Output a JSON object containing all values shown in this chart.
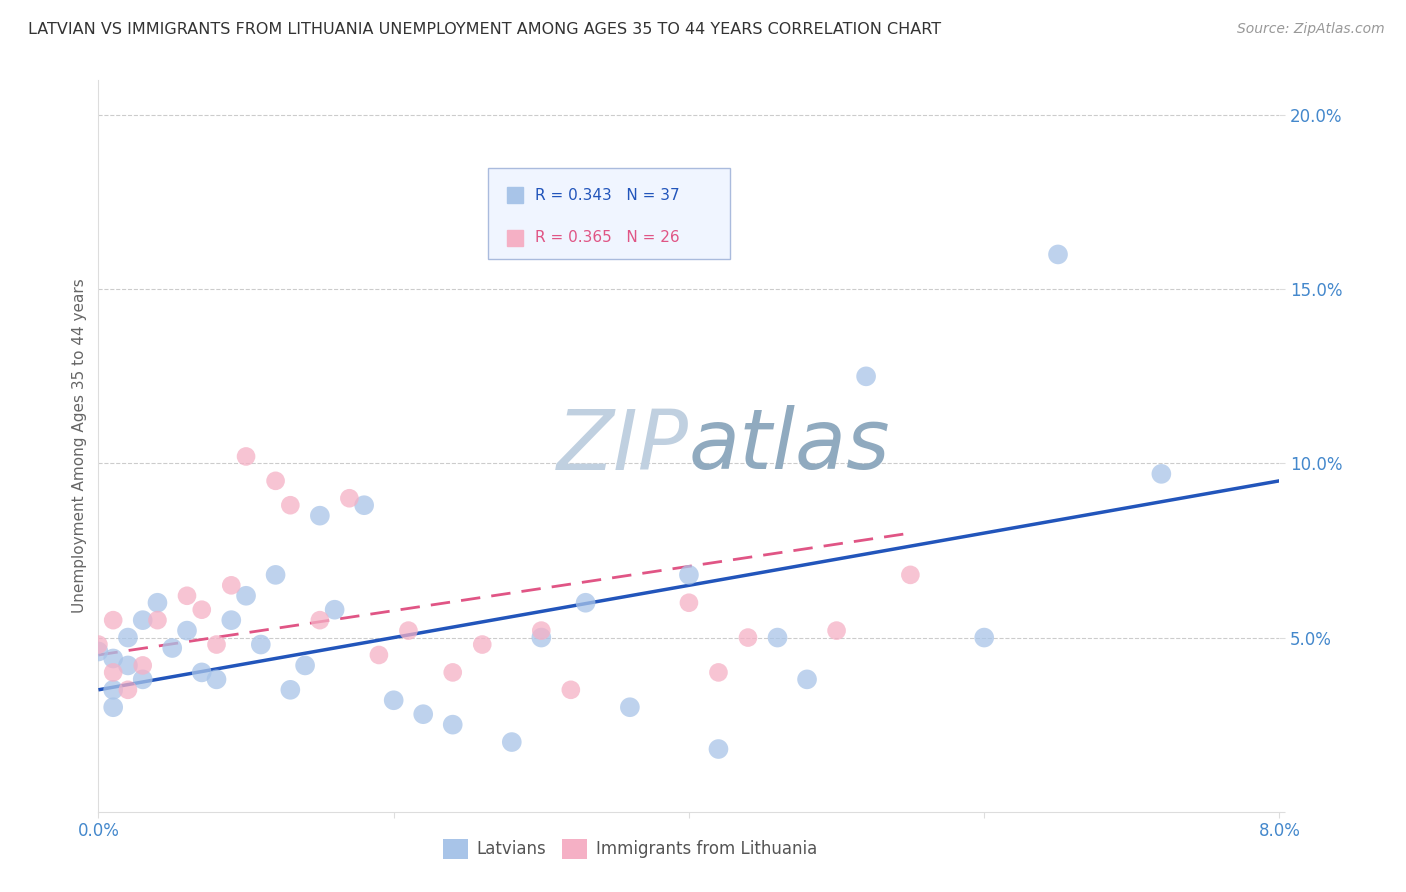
{
  "title": "LATVIAN VS IMMIGRANTS FROM LITHUANIA UNEMPLOYMENT AMONG AGES 35 TO 44 YEARS CORRELATION CHART",
  "source": "Source: ZipAtlas.com",
  "ylabel": "Unemployment Among Ages 35 to 44 years",
  "xlim": [
    0.0,
    0.08
  ],
  "ylim": [
    0.0,
    0.21
  ],
  "latvian_R": 0.343,
  "latvian_N": 37,
  "lithuania_R": 0.365,
  "lithuania_N": 26,
  "latvian_color": "#a8c4e8",
  "lithuania_color": "#f5b0c5",
  "trendline_latvian_color": "#2255bb",
  "trendline_lithuania_color": "#e05585",
  "watermark_zip_color": "#c5d5e5",
  "watermark_atlas_color": "#9ab5cc",
  "background_color": "#ffffff",
  "axis_tick_color": "#4488cc",
  "ylabel_color": "#666666",
  "latvians_x": [
    0.0,
    0.001,
    0.001,
    0.001,
    0.002,
    0.002,
    0.003,
    0.003,
    0.004,
    0.005,
    0.006,
    0.007,
    0.008,
    0.009,
    0.01,
    0.011,
    0.012,
    0.013,
    0.014,
    0.015,
    0.016,
    0.018,
    0.02,
    0.022,
    0.024,
    0.028,
    0.03,
    0.033,
    0.036,
    0.04,
    0.042,
    0.046,
    0.048,
    0.052,
    0.06,
    0.065,
    0.072
  ],
  "latvians_y": [
    0.046,
    0.044,
    0.035,
    0.03,
    0.05,
    0.042,
    0.055,
    0.038,
    0.06,
    0.047,
    0.052,
    0.04,
    0.038,
    0.055,
    0.062,
    0.048,
    0.068,
    0.035,
    0.042,
    0.085,
    0.058,
    0.088,
    0.032,
    0.028,
    0.025,
    0.02,
    0.05,
    0.06,
    0.03,
    0.068,
    0.018,
    0.05,
    0.038,
    0.125,
    0.05,
    0.16,
    0.097
  ],
  "lithuania_x": [
    0.0,
    0.001,
    0.001,
    0.002,
    0.003,
    0.004,
    0.006,
    0.007,
    0.008,
    0.009,
    0.01,
    0.012,
    0.013,
    0.015,
    0.017,
    0.019,
    0.021,
    0.024,
    0.026,
    0.03,
    0.032,
    0.04,
    0.042,
    0.044,
    0.05,
    0.055
  ],
  "lithuania_y": [
    0.048,
    0.04,
    0.055,
    0.035,
    0.042,
    0.055,
    0.062,
    0.058,
    0.048,
    0.065,
    0.102,
    0.095,
    0.088,
    0.055,
    0.09,
    0.045,
    0.052,
    0.04,
    0.048,
    0.052,
    0.035,
    0.06,
    0.04,
    0.05,
    0.052,
    0.068
  ],
  "dot_size_latvian": 200,
  "dot_size_lithuania": 180,
  "dot_alpha": 0.75
}
